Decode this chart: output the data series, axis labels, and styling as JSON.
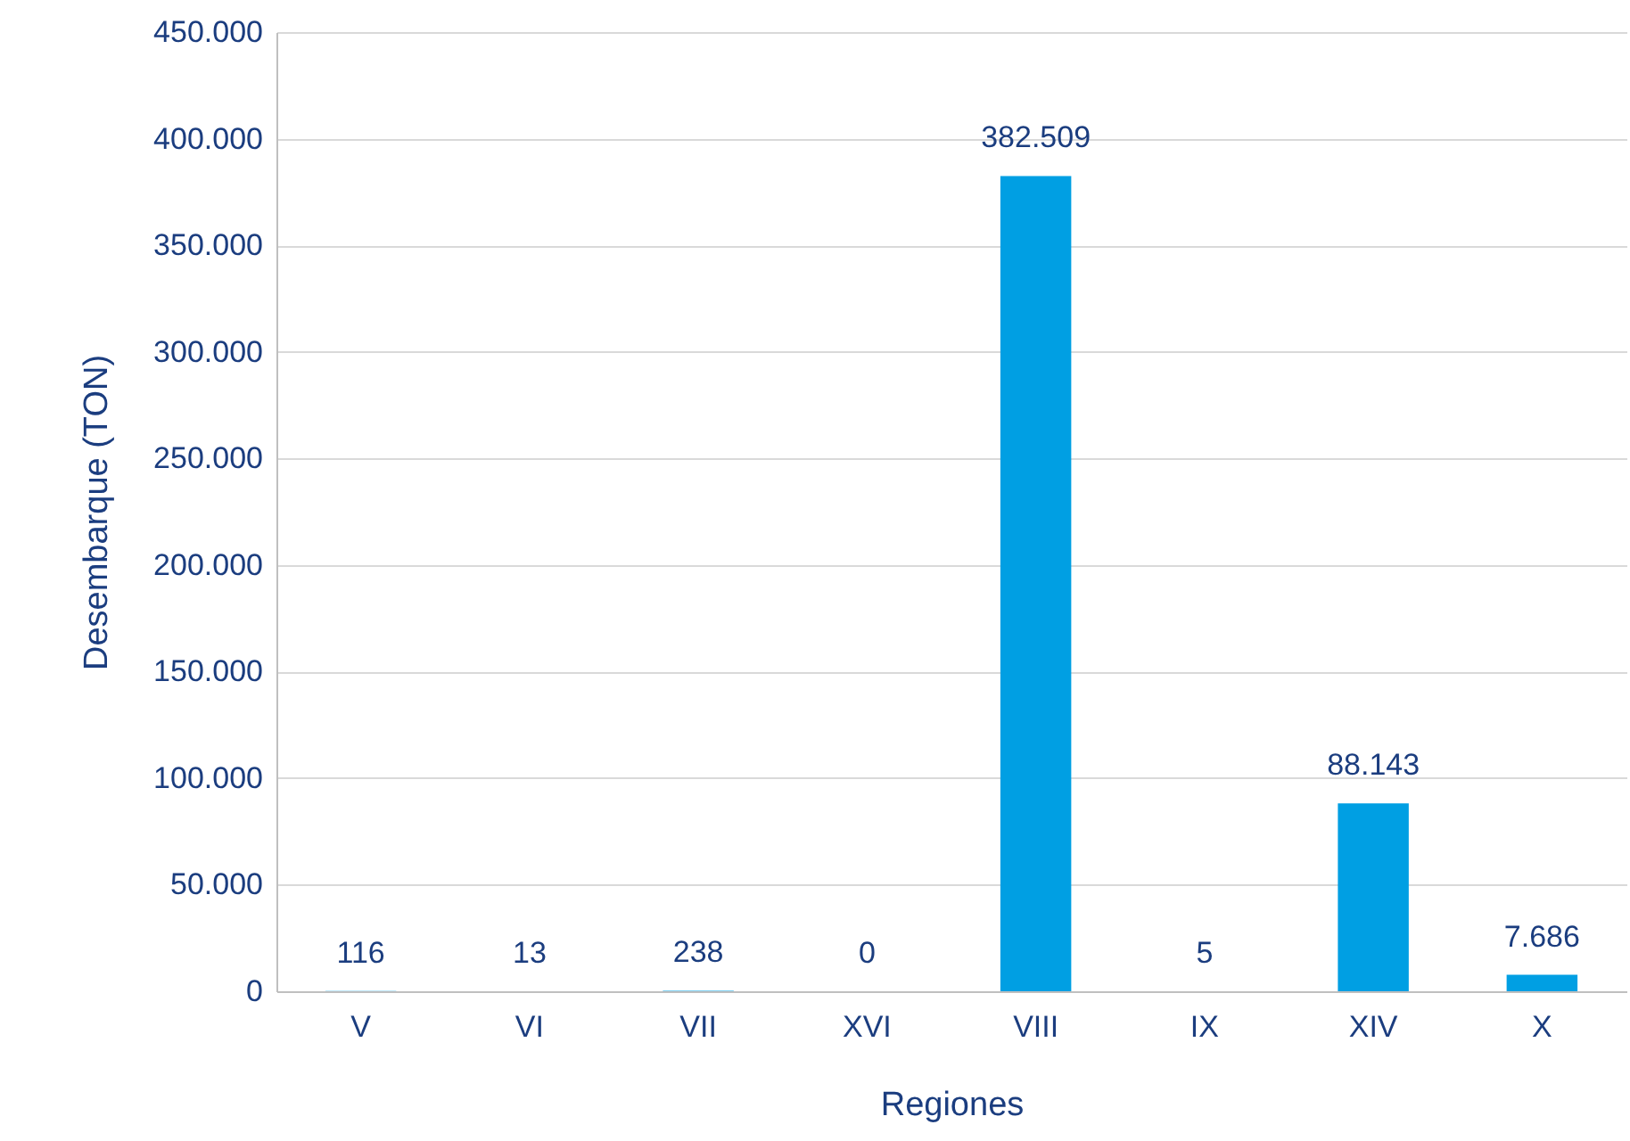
{
  "chart_data": {
    "type": "bar",
    "xlabel": "Regiones",
    "ylabel": "Desembarque (TON)",
    "categories": [
      "V",
      "VI",
      "VII",
      "XVI",
      "VIII",
      "IX",
      "XIV",
      "X"
    ],
    "values": [
      116,
      13,
      238,
      0,
      382509,
      5,
      88143,
      7686
    ],
    "value_labels": [
      "116",
      "13",
      "238",
      "0",
      "382.509",
      "5",
      "88.143",
      "7.686"
    ],
    "color": "#009fe3",
    "ylim": [
      0,
      450000
    ],
    "yticks": [
      0,
      {
        "value": 50000,
        "label": "50.000"
      },
      {
        "value": 100000,
        "label": "100.000"
      },
      {
        "value": 150000,
        "label": "150.000"
      },
      {
        "value": 200000,
        "label": "200.000"
      },
      {
        "value": 250000,
        "label": "250.000"
      },
      {
        "value": 300000,
        "label": "300.000"
      },
      {
        "value": 350000,
        "label": "350.000"
      },
      {
        "value": 400000,
        "label": "400.000"
      },
      {
        "value": 450000,
        "label": "450.000"
      }
    ],
    "grid": "y"
  }
}
